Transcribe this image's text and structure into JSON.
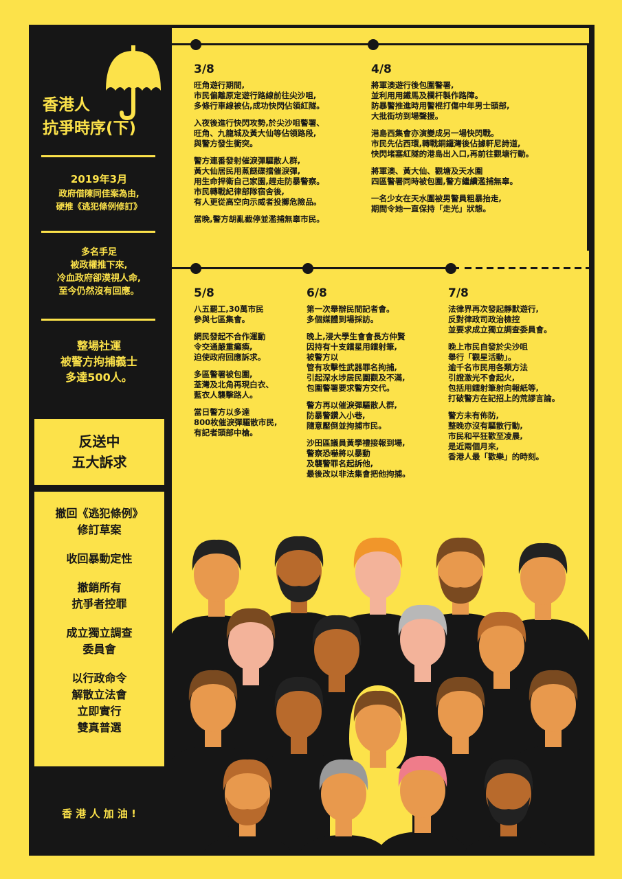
{
  "sidebar": {
    "title_line1": "香港人",
    "title_line2": "抗爭時序(下)",
    "intro_date": "2019年3月",
    "intro_line1": "政府借陳同佳案為由,",
    "intro_line2": "硬推《逃犯條例修訂》",
    "p2_line1": "多名手足",
    "p2_line2": "被政權推下來,",
    "p2_line3": "冷血政府卻漠視人命,",
    "p2_line4": "至今仍然沒有回應。",
    "p3_line1": "整場社運",
    "p3_line2": "被警方拘捕義士",
    "p3_line3": "多達500人。",
    "box_line1": "反送中",
    "box_line2": "五大訴求",
    "demands": [
      {
        "l1": "撤回《逃犯條例》",
        "l2": "修訂草案"
      },
      {
        "l1": "收回暴動定性",
        "l2": ""
      },
      {
        "l1": "撤銷所有",
        "l2": "抗爭者控罪"
      },
      {
        "l1": "成立獨立調查",
        "l2": "委員會"
      },
      {
        "l1": "以行政命令",
        "l2": "解散立法會",
        "l3": "立即實行",
        "l4": "雙真普選"
      }
    ],
    "footer": "香 港 人 加 油 !"
  },
  "timeline": {
    "d38": {
      "date": "3/8",
      "paras": [
        "旺角遊行期間,\n市民偏離原定遊行路線前往尖沙咀,\n多條行車線被佔,成功快閃佔領紅隧。",
        "入夜後進行快閃攻勢,於尖沙咀警署、\n旺角、九龍城及黃大仙等佔領路段,\n與警方發生衝突。",
        "警方連番發射催淚彈驅散人群,\n黃大仙居民用蒸餸碟擋催淚彈,\n用生命捍衛自己家園,趕走防暴警察。\n市民轉戰紀律部隊宿舍後,\n有人更從高空向示威者投擲危險品。",
        "當晚,警方胡亂截停並濫捕無辜市民。"
      ]
    },
    "d48": {
      "date": "4/8",
      "paras": [
        "將軍澳遊行後包圍警署,\n並利用用鐵馬及欄杆製作路障。\n防暴警推進時用警棍打傷中年男士頭部,\n大批街坊到場聲援。",
        "港島西集會亦演變成另一場快閃戰。\n市民先佔西環,轉戰銅鑼灣後佔據軒尼詩道,\n快閃堵塞紅隧的港島出入口,再前往觀塘行動。",
        "將軍澳、黃大仙、觀塘及天水圍\n四區警署同時被包圍,警方繼續濫捕無辜。",
        "一名少女在天水圍被男警員粗暴抬走,\n期間令她一直保持「走光」狀態。"
      ]
    },
    "d58": {
      "date": "5/8",
      "paras": [
        "八五罷工,30萬市民\n參與七區集會。",
        "網民發起不合作運動\n令交通嚴重癱瘓,\n迫使政府回應訴求。",
        "多區警署被包圍,\n荃灣及北角再現白衣、\n藍衣人襲擊路人。",
        "當日警方以多達\n800枚催淚彈驅散市民,\n有記者頭部中槍。"
      ]
    },
    "d68": {
      "date": "6/8",
      "paras": [
        "第一次舉辦民間記者會。\n多個媒體到場採訪。",
        "晚上,浸大學生會會長方仲賢\n因持有十支鐳星用鐳射筆,\n被警方以\n管有攻擊性武器罪名拘捕,\n引起深水埗居民圍觀及不滿,\n包圍警署要求警方交代。",
        "警方再以催淚彈驅散人群,\n防暴警鑽入小巷,\n隨意壓倒並拘捕市民。",
        "沙田區議員黃學禮接報到場,\n警察恐嚇將以暴動\n及襲警罪名起訴他,\n最後改以非法集會把他拘捕。"
      ]
    },
    "d78": {
      "date": "7/8",
      "paras": [
        "法律界再次發起靜默遊行,\n反對律政司政治檢控\n並要求成立獨立調查委員會。",
        "晚上市民自發於尖沙咀\n舉行「觀星活動」。\n逾千名市民用各類方法\n引證激光不會起火,\n包括用鐳射筆射向報紙等,\n打破警方在記招上的荒謬言論。",
        "警方未有佈防,\n整晚亦沒有驅散行動,\n市民和平狂歡至凌晨,\n是近兩個月來,\n香港人最「歡樂」的時刻。"
      ]
    }
  },
  "colors": {
    "yellow": "#fce24a",
    "black": "#161616",
    "skin": "#e8994d"
  },
  "icons": {
    "umbrella": "umbrella-icon"
  }
}
